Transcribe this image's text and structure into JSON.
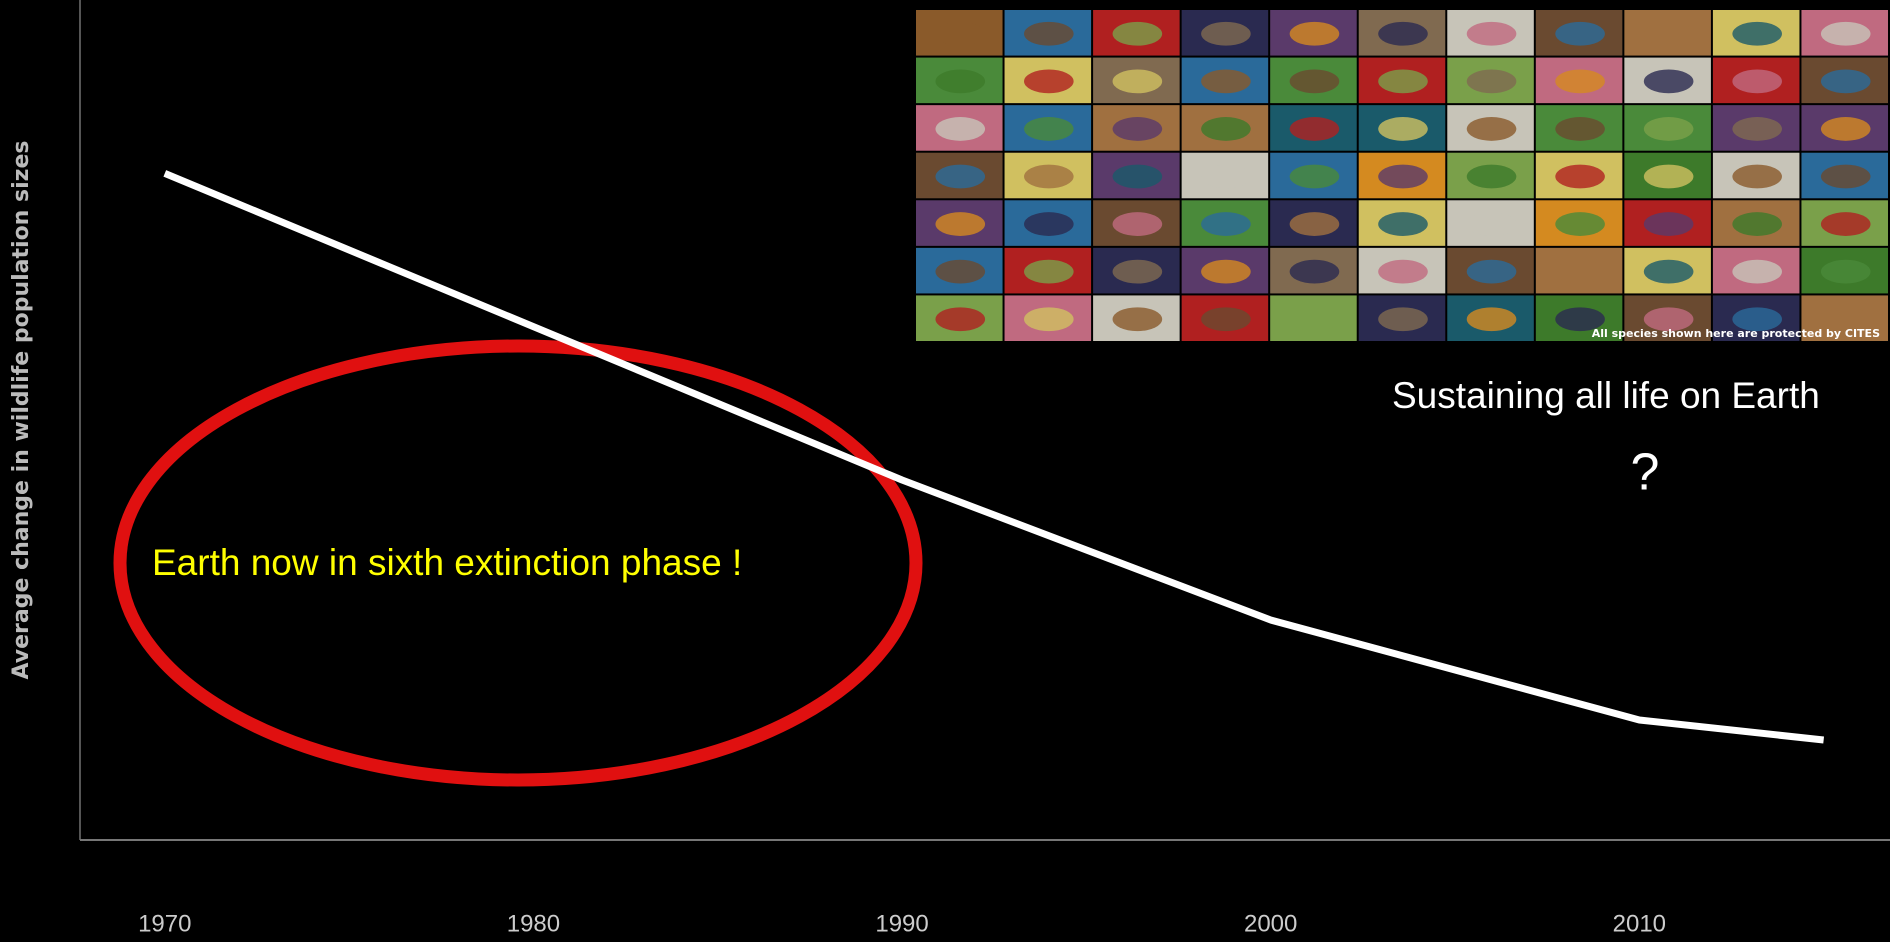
{
  "chart_data": {
    "type": "line",
    "y_axis_label": "Average change in wildlife population sizes",
    "x": [
      1970,
      1990,
      2000,
      2010,
      2015
    ],
    "values": [
      1.0,
      0.54,
      0.33,
      0.18,
      0.15
    ],
    "color": "#ffffff",
    "xlim": [
      1967.7,
      2016.8
    ],
    "xticks": [
      1970,
      1980,
      1990,
      2000,
      2010
    ],
    "ylim": [
      0,
      1.26
    ],
    "grid": false,
    "annotations": [
      "Earth now in sixth extinction phase !",
      "Sustaining all life on Earth",
      "?",
      "All species shown here are protected by CITES"
    ]
  }
}
